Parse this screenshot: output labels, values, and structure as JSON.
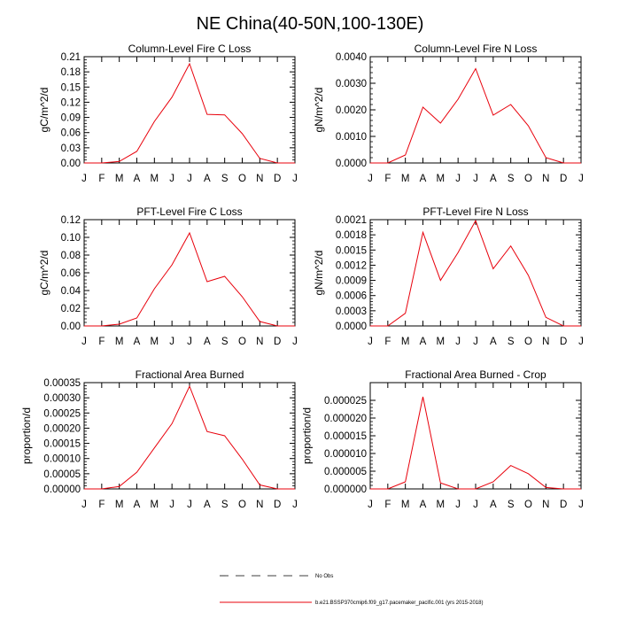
{
  "title": "NE China(40-50N,100-130E)",
  "months": [
    "J",
    "F",
    "M",
    "A",
    "M",
    "J",
    "J",
    "A",
    "S",
    "O",
    "N",
    "D",
    "J"
  ],
  "series_color": "#e8000b",
  "legend": {
    "obs_label": "No Obs",
    "model_label": "b.e21.BSSP370cmip6.f09_g17.pacemaker_pacific.001 (yrs 2015-2018)"
  },
  "chart_data": [
    {
      "type": "line",
      "title": "Column-Level Fire C Loss",
      "ylabel": "gC/m^2/d",
      "ylim": [
        0,
        0.21
      ],
      "yticks": [
        "0.00",
        "0.03",
        "0.06",
        "0.09",
        "0.12",
        "0.15",
        "0.18",
        "0.21"
      ],
      "series": [
        {
          "name": "model",
          "values": [
            0,
            0,
            0.003,
            0.023,
            0.082,
            0.13,
            0.196,
            0.096,
            0.095,
            0.058,
            0.009,
            0,
            0
          ]
        }
      ]
    },
    {
      "type": "line",
      "title": "Column-Level Fire N Loss",
      "ylabel": "gN/m^2/d",
      "ylim": [
        0,
        0.004
      ],
      "yticks": [
        "0.0000",
        "0.0010",
        "0.0020",
        "0.0030",
        "0.0040"
      ],
      "series": [
        {
          "name": "model",
          "values": [
            0,
            0,
            0.0003,
            0.0021,
            0.0015,
            0.0024,
            0.00355,
            0.0018,
            0.0022,
            0.0014,
            0.0002,
            0,
            0
          ]
        }
      ]
    },
    {
      "type": "line",
      "title": "PFT-Level Fire C Loss",
      "ylabel": "gC/m^2/d",
      "ylim": [
        0,
        0.12
      ],
      "yticks": [
        "0.00",
        "0.02",
        "0.04",
        "0.06",
        "0.08",
        "0.10",
        "0.12"
      ],
      "series": [
        {
          "name": "model",
          "values": [
            0,
            0,
            0.002,
            0.009,
            0.042,
            0.069,
            0.105,
            0.05,
            0.056,
            0.033,
            0.005,
            0,
            0
          ]
        }
      ]
    },
    {
      "type": "line",
      "title": "PFT-Level Fire N Loss",
      "ylabel": "gN/m^2/d",
      "ylim": [
        0,
        0.0021
      ],
      "yticks": [
        "0.0000",
        "0.0003",
        "0.0006",
        "0.0009",
        "0.0012",
        "0.0015",
        "0.0018",
        "0.0021"
      ],
      "series": [
        {
          "name": "model",
          "values": [
            0,
            0,
            0.00025,
            0.00185,
            0.0009,
            0.00145,
            0.00208,
            0.00113,
            0.00158,
            0.001,
            0.00017,
            0,
            0
          ]
        }
      ]
    },
    {
      "type": "line",
      "title": "Fractional Area Burned",
      "ylabel": "proportion/d",
      "ylim": [
        0,
        0.00035
      ],
      "yticks": [
        "0.00000",
        "0.00005",
        "0.00010",
        "0.00015",
        "0.00020",
        "0.00025",
        "0.00030",
        "0.00035"
      ],
      "series": [
        {
          "name": "model",
          "values": [
            0,
            0,
            8e-06,
            5.5e-05,
            0.000135,
            0.000215,
            0.000338,
            0.000189,
            0.000175,
            9.8e-05,
            1.3e-05,
            0,
            0
          ]
        }
      ]
    },
    {
      "type": "line",
      "title": "Fractional Area Burned - Crop",
      "ylabel": "proportion/d",
      "ylim": [
        0,
        3e-05
      ],
      "yticks": [
        "0.000000",
        "0.000005",
        "0.000010",
        "0.000015",
        "0.000020",
        "0.000025"
      ],
      "series": [
        {
          "name": "model",
          "values": [
            0,
            0,
            2e-06,
            2.6e-05,
            1.7e-06,
            0,
            0,
            2e-06,
            6.6e-06,
            4.3e-06,
            4e-07,
            0,
            0
          ]
        }
      ]
    }
  ]
}
